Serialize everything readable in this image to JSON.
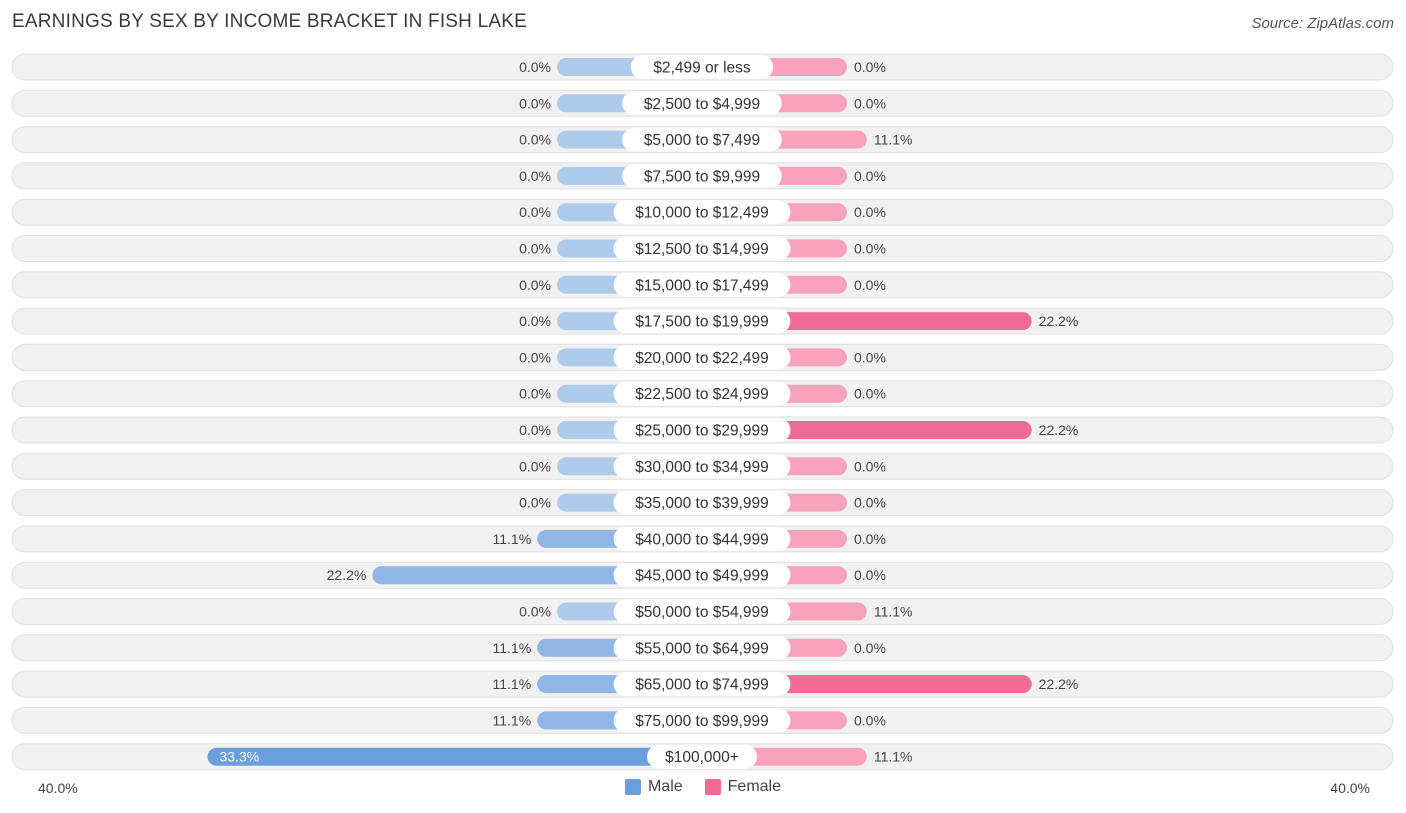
{
  "title": "EARNINGS BY SEX BY INCOME BRACKET IN FISH LAKE",
  "source": "Source: ZipAtlas.com",
  "colors": {
    "male_bar": "#8fb6e4",
    "male_bar_light": "#aecbeb",
    "male_bar_strong": "#6a9fdc",
    "female_bar": "#f7a3bd",
    "female_bar_strong": "#f06b95",
    "row_bg": "#f1f1f1",
    "row_border": "#e0e0e0"
  },
  "legend": {
    "male": "Male",
    "female": "Female"
  },
  "axis": {
    "left_label": "40.0%",
    "right_label": "40.0%"
  },
  "chart_data": {
    "type": "bar",
    "orientation": "horizontal-diverging",
    "title": "EARNINGS BY SEX BY INCOME BRACKET IN FISH LAKE",
    "xlim": [
      -40,
      40
    ],
    "categories": [
      "$2,499 or less",
      "$2,500 to $4,999",
      "$5,000 to $7,499",
      "$7,500 to $9,999",
      "$10,000 to $12,499",
      "$12,500 to $14,999",
      "$15,000 to $17,499",
      "$17,500 to $19,999",
      "$20,000 to $22,499",
      "$22,500 to $24,999",
      "$25,000 to $29,999",
      "$30,000 to $34,999",
      "$35,000 to $39,999",
      "$40,000 to $44,999",
      "$45,000 to $49,999",
      "$50,000 to $54,999",
      "$55,000 to $64,999",
      "$65,000 to $74,999",
      "$75,000 to $99,999",
      "$100,000+"
    ],
    "series": [
      {
        "name": "Male",
        "values": [
          0.0,
          0.0,
          0.0,
          0.0,
          0.0,
          0.0,
          0.0,
          0.0,
          0.0,
          0.0,
          0.0,
          0.0,
          0.0,
          11.1,
          22.2,
          0.0,
          11.1,
          11.1,
          11.1,
          33.3
        ],
        "labels": [
          "0.0%",
          "0.0%",
          "0.0%",
          "0.0%",
          "0.0%",
          "0.0%",
          "0.0%",
          "0.0%",
          "0.0%",
          "0.0%",
          "0.0%",
          "0.0%",
          "0.0%",
          "11.1%",
          "22.2%",
          "0.0%",
          "11.1%",
          "11.1%",
          "11.1%",
          "33.3%"
        ]
      },
      {
        "name": "Female",
        "values": [
          0.0,
          0.0,
          11.1,
          0.0,
          0.0,
          0.0,
          0.0,
          22.2,
          0.0,
          0.0,
          22.2,
          0.0,
          0.0,
          0.0,
          0.0,
          11.1,
          0.0,
          22.2,
          0.0,
          11.1
        ],
        "labels": [
          "0.0%",
          "0.0%",
          "11.1%",
          "0.0%",
          "0.0%",
          "0.0%",
          "0.0%",
          "22.2%",
          "0.0%",
          "0.0%",
          "22.2%",
          "0.0%",
          "0.0%",
          "0.0%",
          "0.0%",
          "11.1%",
          "0.0%",
          "22.2%",
          "0.0%",
          "11.1%"
        ]
      }
    ],
    "legend_position": "bottom-center"
  }
}
